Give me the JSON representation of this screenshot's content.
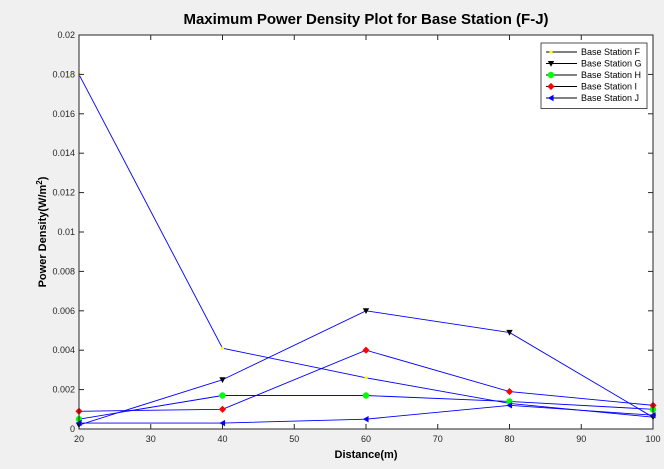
{
  "chart_data": {
    "type": "line",
    "title": "Maximum Power Density Plot for Base Station (F-J)",
    "xlabel": "Distance(m)",
    "ylabel": "Power Density(W/m",
    "ylabel_sup": "2",
    "ylabel_close": ")",
    "xlim": [
      20,
      100
    ],
    "ylim": [
      0,
      0.02
    ],
    "xticks": [
      20,
      30,
      40,
      50,
      60,
      70,
      80,
      90,
      100
    ],
    "yticks": [
      0,
      0.002,
      0.004,
      0.006,
      0.008,
      0.01,
      0.012,
      0.014,
      0.016,
      0.018,
      0.02
    ],
    "ytick_labels": [
      "0",
      "0.002",
      "0.004",
      "0.006",
      "0.008",
      "0.01",
      "0.012",
      "0.014",
      "0.016",
      "0.018",
      "0.02"
    ],
    "grid": false,
    "legend_position": "top-right",
    "line_color": "#0000ff",
    "x": [
      20,
      40,
      60,
      80,
      100
    ],
    "series": [
      {
        "name": "Base Station F",
        "marker": "dot",
        "marker_color": "#ffff00",
        "values": [
          0.018,
          0.0041,
          0.0026,
          0.0013,
          0.0006
        ]
      },
      {
        "name": "Base Station G",
        "marker": "tri-down",
        "marker_color": "#000000",
        "values": [
          0.0002,
          0.0025,
          0.006,
          0.0049,
          0.0006
        ]
      },
      {
        "name": "Base Station H",
        "marker": "circle",
        "marker_color": "#00ff00",
        "values": [
          0.0005,
          0.0017,
          0.0017,
          0.0014,
          0.001
        ]
      },
      {
        "name": "Base Station I",
        "marker": "diamond",
        "marker_color": "#ff0000",
        "values": [
          0.0009,
          0.001,
          0.004,
          0.0019,
          0.0012
        ]
      },
      {
        "name": "Base Station J",
        "marker": "tri-left",
        "marker_color": "#0000ff",
        "values": [
          0.0003,
          0.0003,
          0.0005,
          0.0012,
          0.0007
        ]
      }
    ]
  }
}
